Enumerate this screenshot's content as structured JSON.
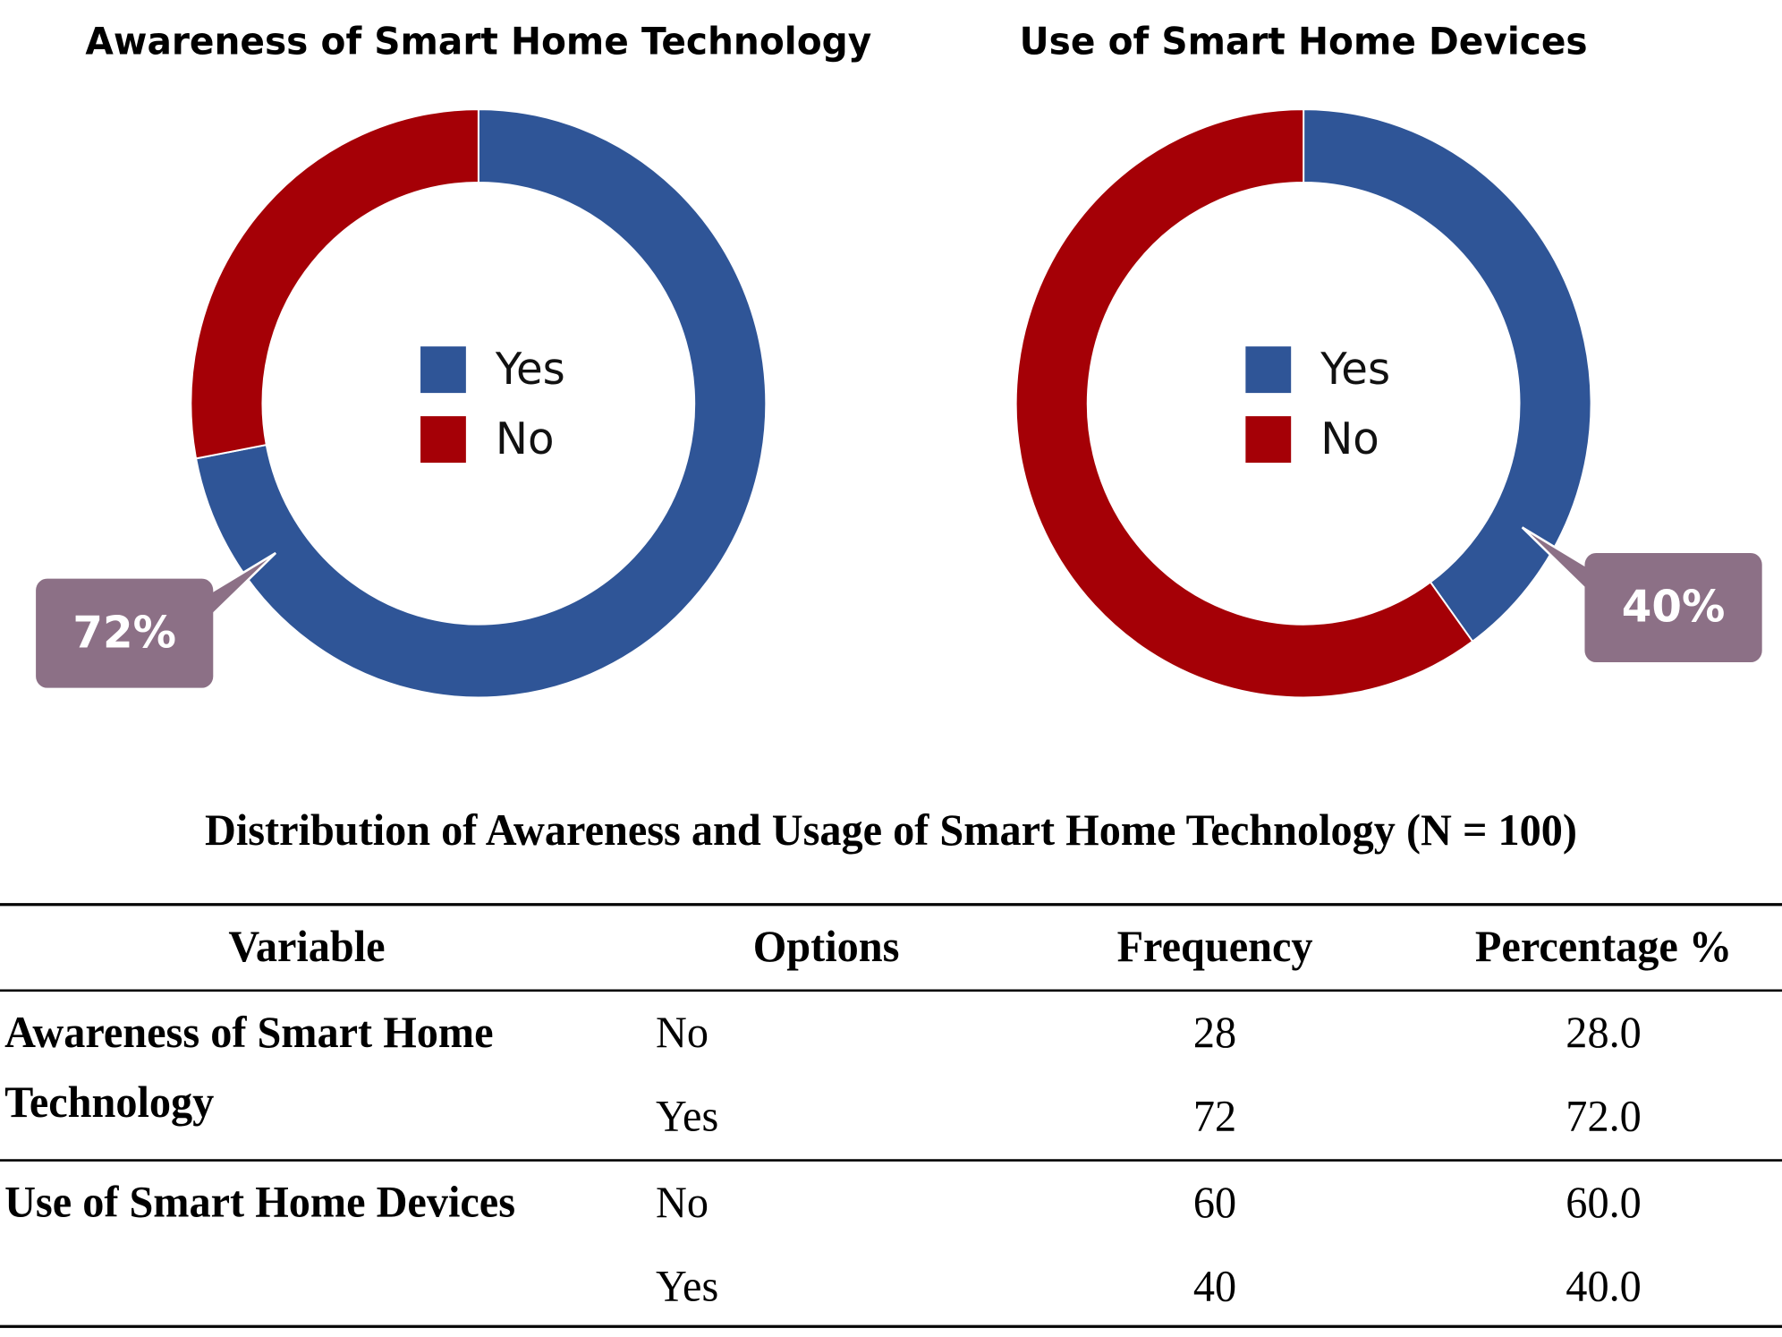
{
  "chart_data": [
    {
      "type": "donut",
      "title": "Awareness of Smart Home Technology",
      "categories": [
        "Yes",
        "No"
      ],
      "values": [
        72,
        28
      ],
      "value_labels": [
        "72%",
        null
      ],
      "colors": [
        "#2f5597",
        "#a50006"
      ],
      "legend": "center"
    },
    {
      "type": "donut",
      "title": "Use of Smart Home Devices",
      "categories": [
        "Yes",
        "No"
      ],
      "values": [
        40,
        60
      ],
      "value_labels": [
        "40%",
        null
      ],
      "colors": [
        "#2f5597",
        "#a50006"
      ],
      "legend": "center"
    }
  ],
  "table": {
    "title": "Distribution of Awareness and Usage of Smart Home Technology (N = 100)",
    "columns": [
      "Variable",
      "Options",
      "Frequency",
      "Percentage %"
    ],
    "groups": [
      {
        "variable": "Awareness of Smart Home Technology",
        "rows": [
          [
            "No",
            "28",
            "28.0"
          ],
          [
            "Yes",
            "72",
            "72.0"
          ]
        ]
      },
      {
        "variable": "Use of Smart Home Devices",
        "rows": [
          [
            "No",
            "60",
            "60.0"
          ],
          [
            "Yes",
            "40",
            "40.0"
          ]
        ]
      }
    ]
  }
}
